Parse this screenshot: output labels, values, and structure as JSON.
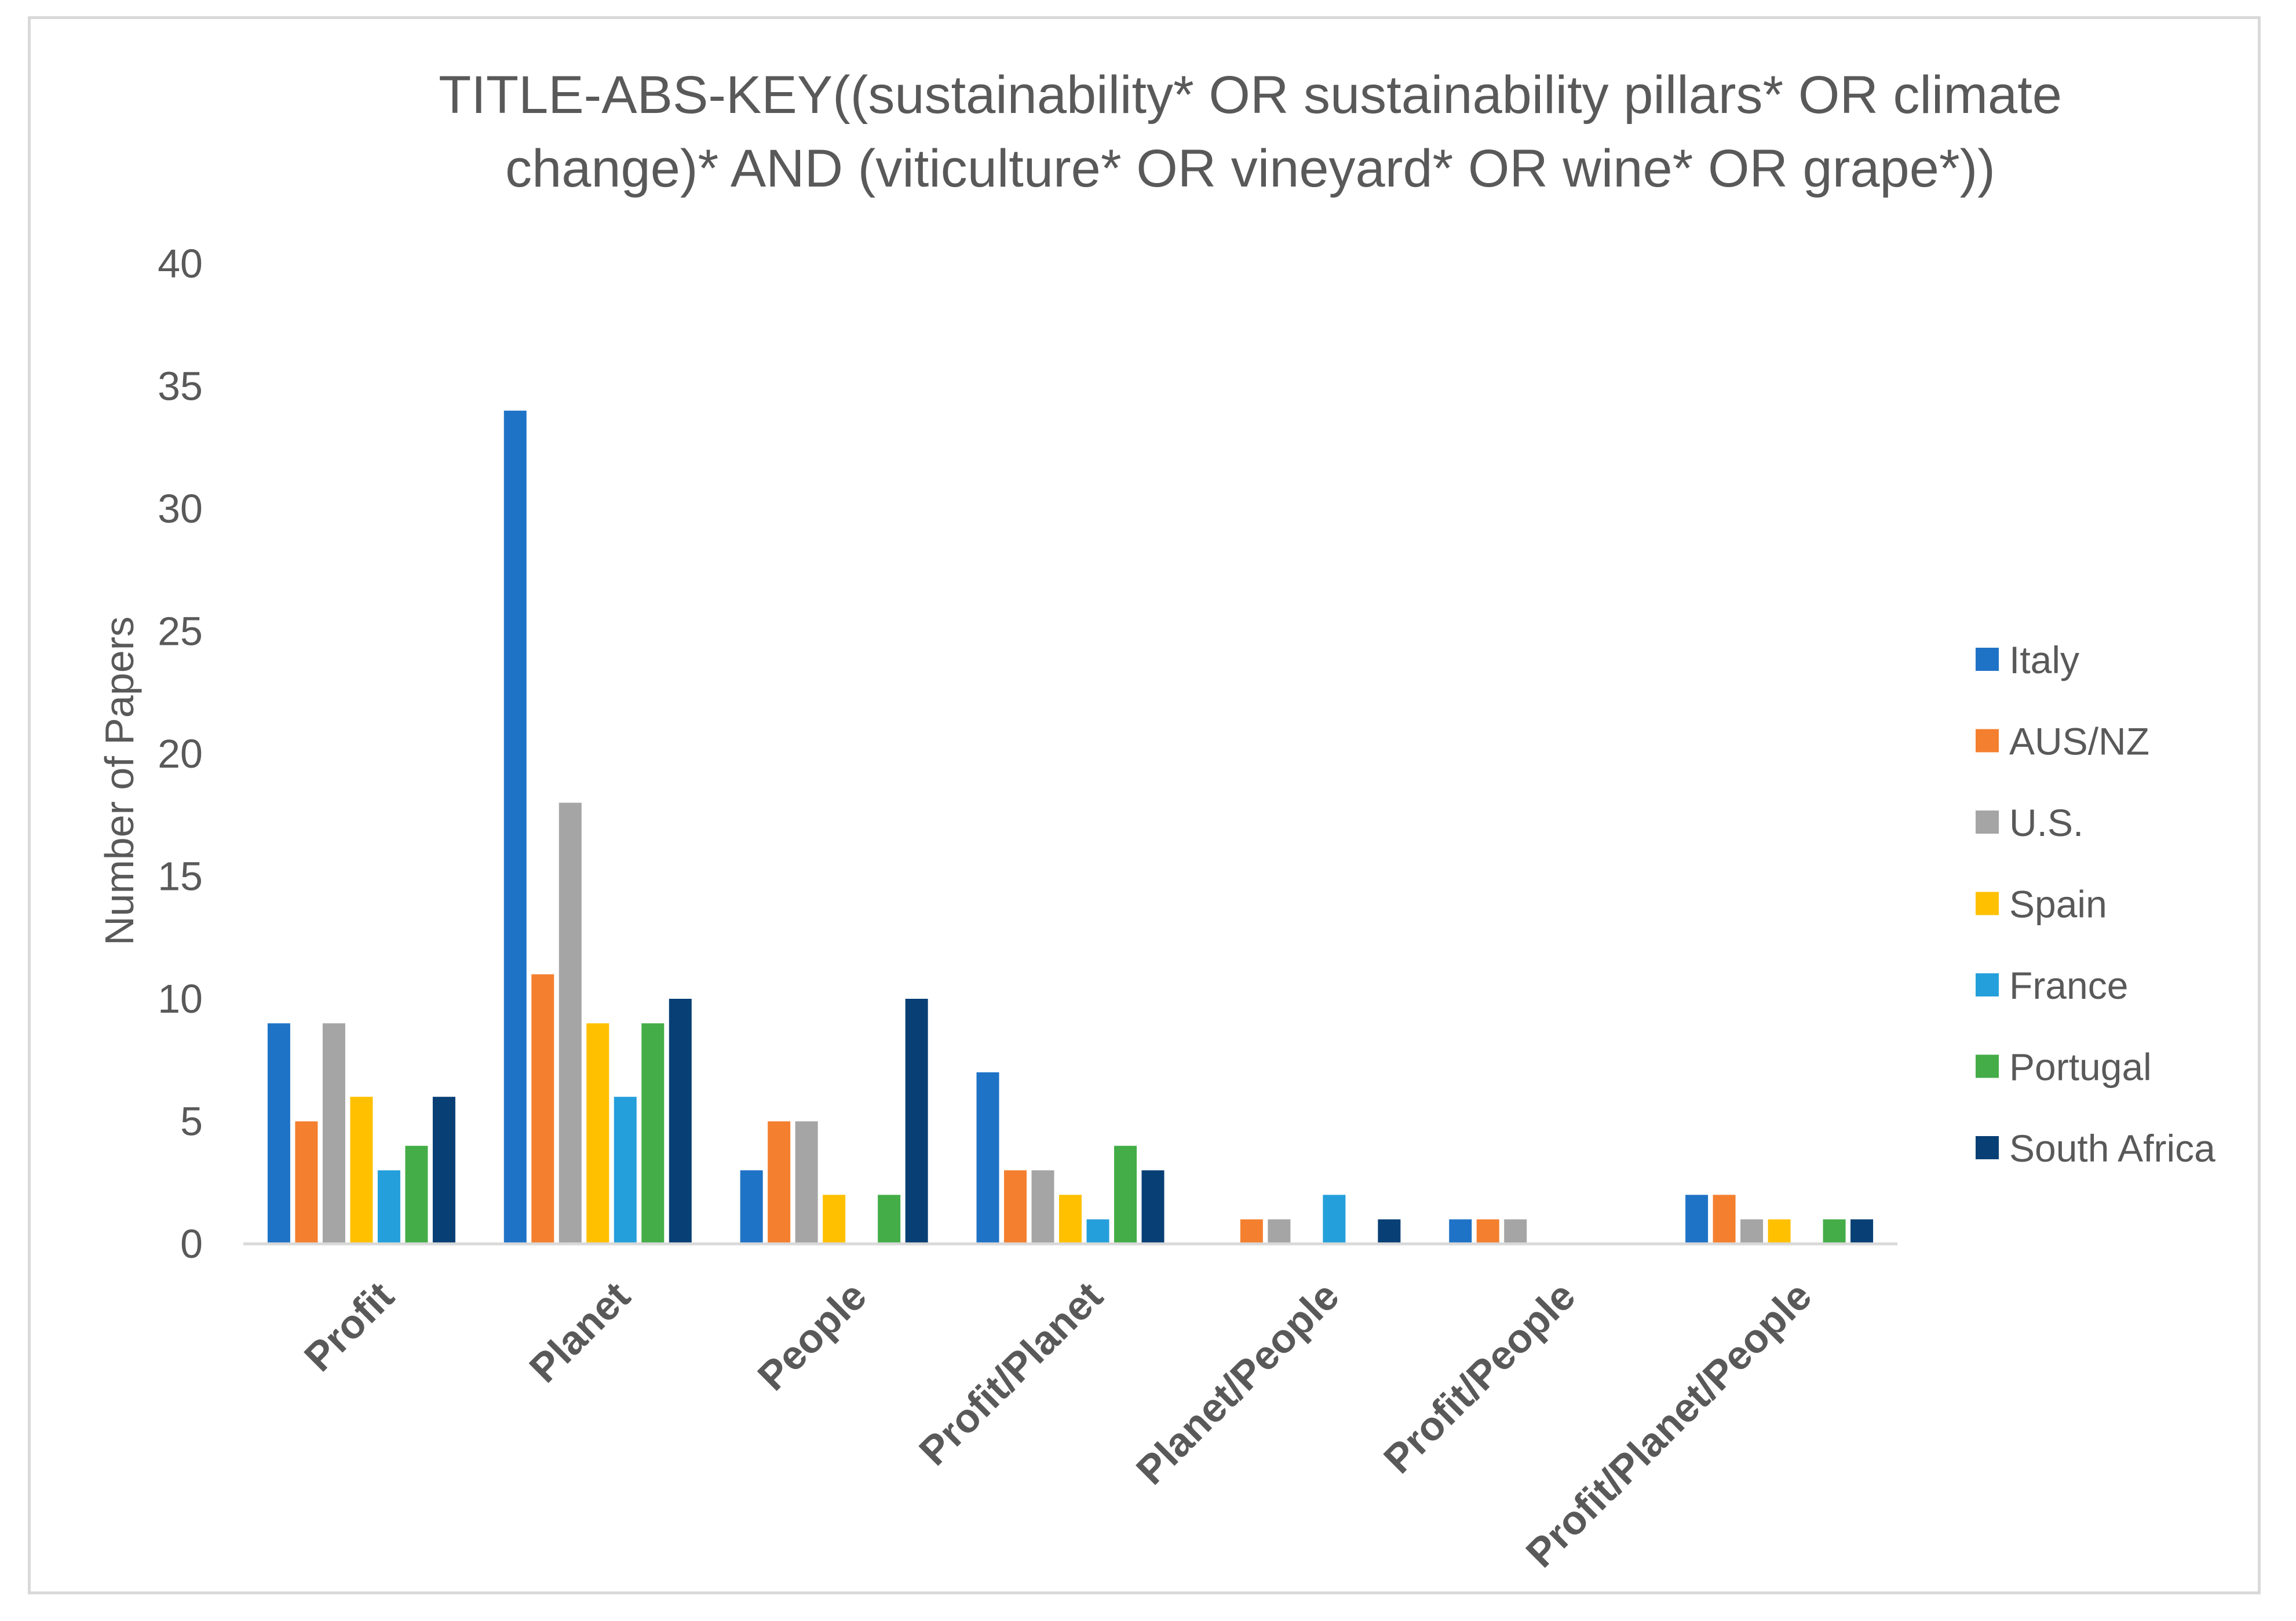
{
  "chart_data": {
    "type": "bar",
    "title_lines": [
      "TITLE-ABS-KEY((sustainability* OR sustainability pillars* OR climate",
      "change)* AND (viticulture* OR vineyard* OR wine* OR grape*))"
    ],
    "xlabel": "",
    "ylabel": "Number of Papers",
    "ylim": [
      0,
      40
    ],
    "yticks": [
      0,
      5,
      10,
      15,
      20,
      25,
      30,
      35,
      40
    ],
    "grid": false,
    "legend_position": "right",
    "categories": [
      "Profit",
      "Planet",
      "People",
      "Profit/Planet",
      "Planet/People",
      "Profit/People",
      "Profit/Planet/People"
    ],
    "series": [
      {
        "name": "Italy",
        "color": "#1f73c6",
        "values": [
          9,
          34,
          3,
          7,
          0,
          1,
          2
        ]
      },
      {
        "name": "AUS/NZ",
        "color": "#f4802f",
        "values": [
          5,
          11,
          5,
          3,
          1,
          1,
          2
        ]
      },
      {
        "name": "U.S.",
        "color": "#a5a5a5",
        "values": [
          9,
          18,
          5,
          3,
          1,
          1,
          1
        ]
      },
      {
        "name": "Spain",
        "color": "#ffc000",
        "values": [
          6,
          9,
          2,
          2,
          0,
          0,
          1
        ]
      },
      {
        "name": "France",
        "color": "#259fdb",
        "values": [
          3,
          6,
          0,
          1,
          2,
          0,
          0
        ]
      },
      {
        "name": "Portugal",
        "color": "#44ad47",
        "values": [
          4,
          9,
          2,
          4,
          0,
          0,
          1
        ]
      },
      {
        "name": "South Africa",
        "color": "#083f75",
        "values": [
          6,
          10,
          10,
          3,
          1,
          0,
          1
        ]
      }
    ]
  }
}
